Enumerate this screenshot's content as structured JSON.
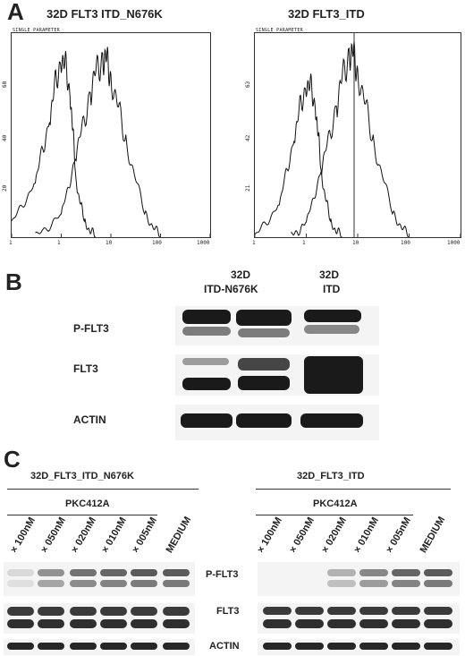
{
  "panel_a": {
    "letter": "A",
    "left": {
      "title": "32D FLT3 ITD_N676K",
      "header": "SINGLE PARAMETER",
      "y_ticks": [
        "20",
        "40",
        "60"
      ],
      "x_ticks": [
        "1",
        "1",
        "10",
        "100",
        "1000"
      ]
    },
    "right": {
      "title": "32D FLT3_ITD",
      "header": "SINGLE PARAMETER",
      "y_ticks": [
        "21",
        "42",
        "63"
      ],
      "x_ticks": [
        "1",
        "1",
        "10",
        "100",
        "1000"
      ]
    }
  },
  "panel_b": {
    "letter": "B",
    "col1": "32D",
    "col1b": "ITD-N676K",
    "col2": "32D",
    "col2b": "ITD",
    "rows": [
      "P-FLT3",
      "FLT3",
      "ACTIN"
    ]
  },
  "panel_c": {
    "letter": "C",
    "left_group": "32D_FLT3_ITD_N676K",
    "right_group": "32D_FLT3_ITD",
    "drug": "PKC412A",
    "lane_labels": [
      "100nM",
      "050nM",
      "020nM",
      "010nM",
      "005nM",
      "MEDIUM"
    ],
    "marker": "×",
    "rows": [
      "P-FLT3",
      "FLT3",
      "ACTIN"
    ]
  },
  "chart_data": [
    {
      "type": "line",
      "title": "32D FLT3 ITD_N676K",
      "xscale": "log",
      "xlim": [
        0.1,
        1000
      ],
      "ylim": [
        0,
        75
      ],
      "series": [
        {
          "x": [
            0.1,
            0.3,
            0.6,
            1,
            1.5,
            2,
            3,
            5
          ],
          "values": [
            5,
            20,
            45,
            68,
            55,
            20,
            5,
            0
          ]
        },
        {
          "x": [
            0.3,
            1,
            2,
            4,
            7,
            10,
            20,
            50,
            100
          ],
          "values": [
            0,
            8,
            30,
            55,
            68,
            60,
            35,
            8,
            0
          ]
        }
      ]
    },
    {
      "type": "line",
      "title": "32D FLT3_ITD",
      "xscale": "log",
      "xlim": [
        0.1,
        1000
      ],
      "ylim": [
        0,
        75
      ],
      "series": [
        {
          "x": [
            0.1,
            0.3,
            0.6,
            1,
            1.5,
            2,
            3,
            5
          ],
          "values": [
            0,
            12,
            38,
            58,
            50,
            22,
            5,
            0
          ]
        },
        {
          "x": [
            0.5,
            1,
            2,
            4,
            7,
            10,
            20,
            50,
            100
          ],
          "values": [
            0,
            5,
            25,
            50,
            70,
            62,
            35,
            8,
            0
          ]
        }
      ]
    }
  ]
}
